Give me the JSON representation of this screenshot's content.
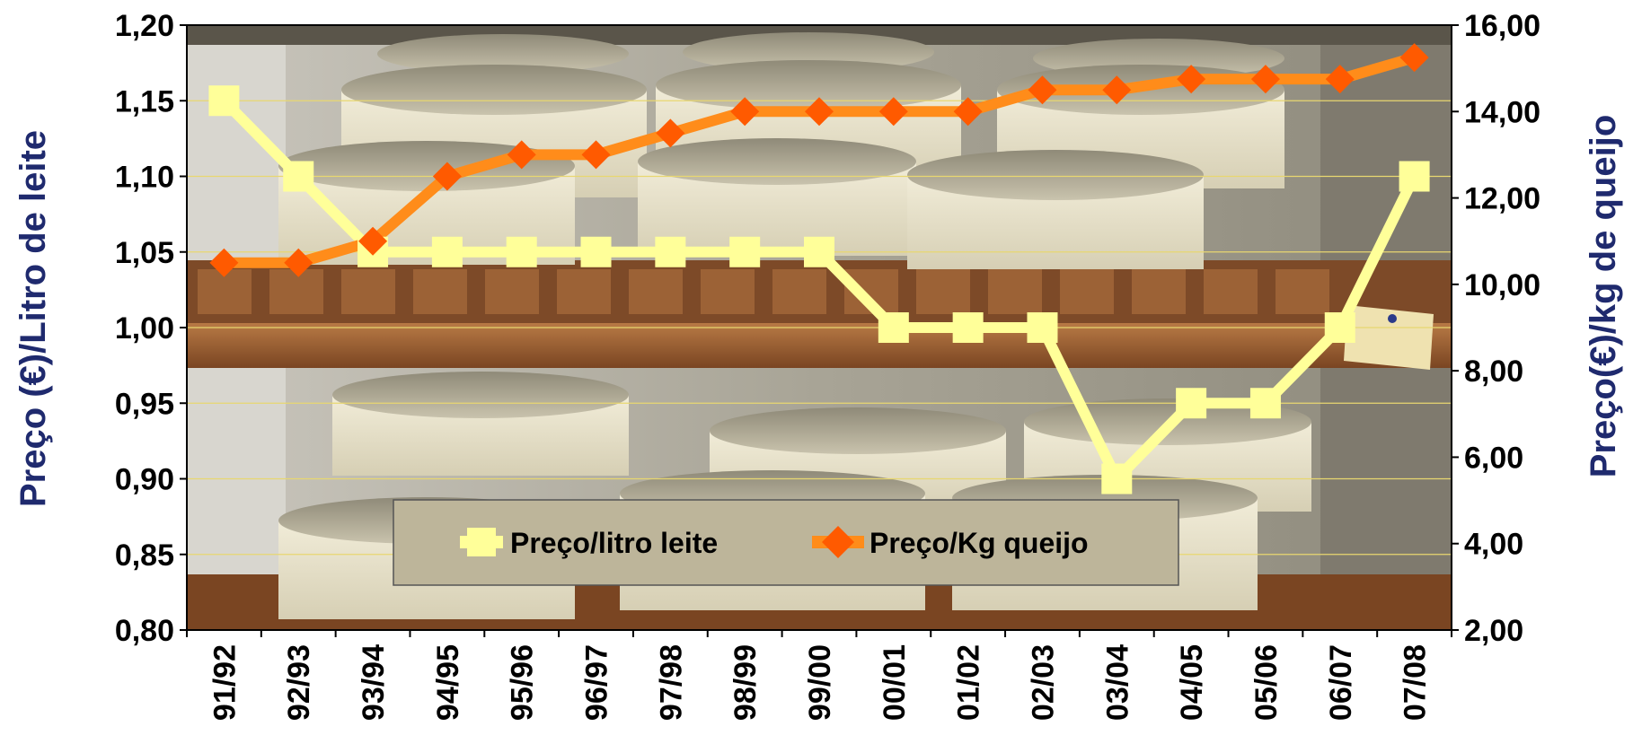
{
  "chart_data": {
    "type": "line",
    "categories": [
      "91/92",
      "92/93",
      "93/94",
      "94/95",
      "95/96",
      "96/97",
      "97/98",
      "98/99",
      "99/00",
      "00/01",
      "01/02",
      "02/03",
      "03/04",
      "04/05",
      "05/06",
      "06/07",
      "07/08"
    ],
    "series": [
      {
        "name": "Preço/litro leite",
        "axis": "left",
        "color": "#ffff99",
        "marker": "square",
        "values": [
          1.15,
          1.1,
          1.05,
          1.05,
          1.05,
          1.05,
          1.05,
          1.05,
          1.05,
          1.0,
          1.0,
          1.0,
          0.9,
          0.95,
          0.95,
          1.0,
          1.1
        ]
      },
      {
        "name": "Preço/Kg queijo",
        "axis": "right",
        "color": "#ff8c1a",
        "marker": "diamond",
        "values": [
          10.5,
          10.5,
          11.0,
          12.5,
          13.0,
          13.0,
          13.5,
          14.0,
          14.0,
          14.0,
          14.0,
          14.5,
          14.5,
          14.75,
          14.75,
          14.75,
          15.25
        ]
      }
    ],
    "ylabel": "Preço (€)/Litro de leite",
    "ylabel_right": "Preço(€)/kg de queijo",
    "ylim": [
      0.8,
      1.2
    ],
    "ylim_right": [
      2.0,
      16.0
    ],
    "yticks": [
      "1,20",
      "1,15",
      "1,10",
      "1,05",
      "1,00",
      "0,95",
      "0,90",
      "0,85",
      "0,80"
    ],
    "yticks_right": [
      "16,00",
      "14,00",
      "12,00",
      "10,00",
      "8,00",
      "6,00",
      "4,00",
      "2,00"
    ],
    "grid": true,
    "legend_position": "bottom-center",
    "background": "photo-cheese-shelves"
  }
}
